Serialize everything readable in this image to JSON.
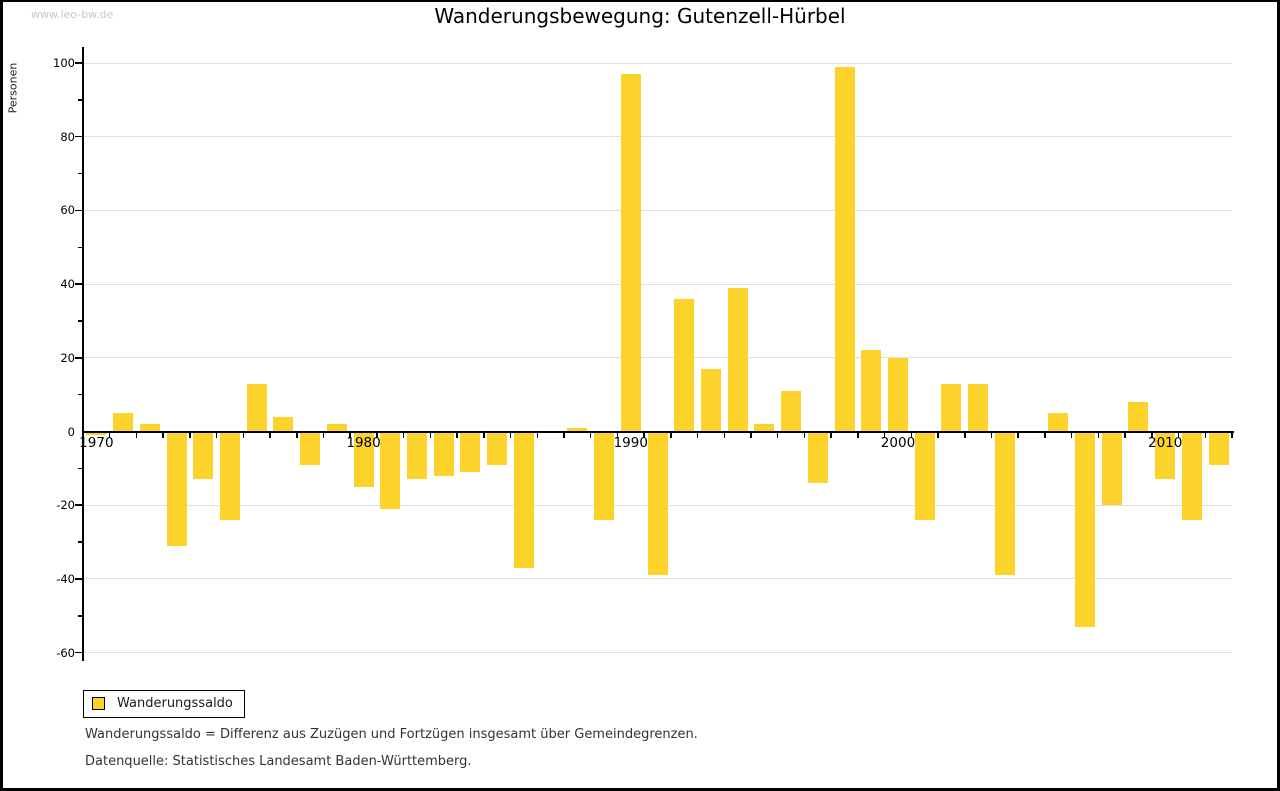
{
  "watermark": "www.leo-bw.de",
  "title": "Wanderungsbewegung: Gutenzell-Hürbel",
  "y_axis_label": "Personen",
  "legend": {
    "label": "Wanderungssaldo"
  },
  "footnotes": {
    "definition": "Wanderungssaldo = Differenz aus Zuzügen und Fortzügen insgesamt über Gemeindegrenzen.",
    "source": "Datenquelle: Statistisches Landesamt Baden-Württemberg."
  },
  "chart_data": {
    "type": "bar",
    "title": "Wanderungsbewegung: Gutenzell-Hürbel",
    "xlabel": "",
    "ylabel": "Personen",
    "series_name": "Wanderungssaldo",
    "bar_color": "#fcd32b",
    "grid": "horizontal",
    "ylim": [
      -60,
      100
    ],
    "y_ticks": [
      -60,
      -40,
      -20,
      0,
      20,
      40,
      60,
      80,
      100
    ],
    "x_tick_labels": [
      1970,
      1980,
      1990,
      2000,
      2010
    ],
    "x": [
      1970,
      1971,
      1972,
      1973,
      1974,
      1975,
      1976,
      1977,
      1978,
      1979,
      1980,
      1981,
      1982,
      1983,
      1984,
      1985,
      1986,
      1987,
      1988,
      1989,
      1990,
      1991,
      1992,
      1993,
      1994,
      1995,
      1996,
      1997,
      1998,
      1999,
      2000,
      2001,
      2002,
      2003,
      2004,
      2005,
      2006,
      2007,
      2008,
      2009,
      2010,
      2011,
      2012
    ],
    "values": [
      -1,
      5,
      2,
      -31,
      -13,
      -24,
      13,
      4,
      -9,
      2,
      -15,
      -21,
      -13,
      -12,
      -11,
      -9,
      -37,
      0,
      1,
      -24,
      97,
      -39,
      36,
      17,
      39,
      2,
      11,
      -14,
      99,
      22,
      20,
      -24,
      13,
      13,
      -39,
      0,
      5,
      -53,
      -20,
      8,
      -13,
      -24,
      -9
    ]
  }
}
